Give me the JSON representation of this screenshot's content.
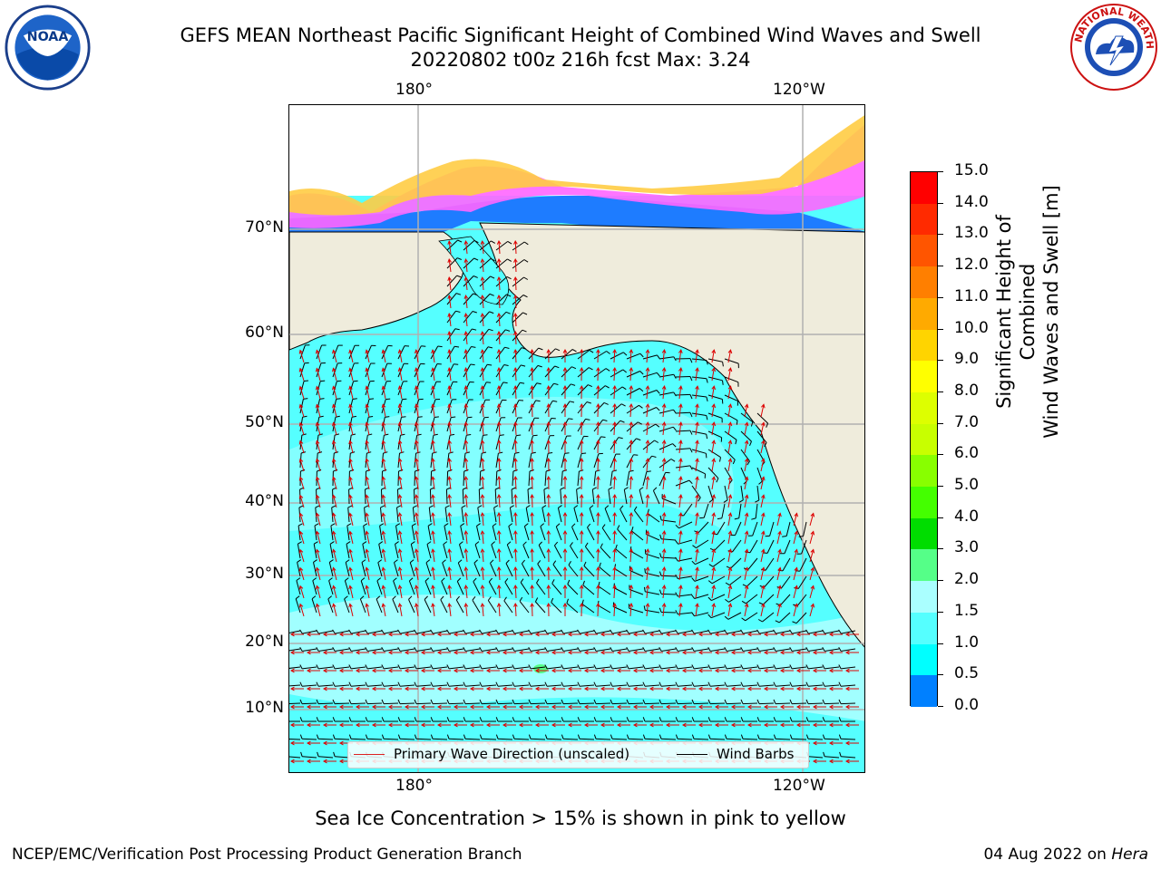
{
  "header": {
    "title_line1": "GEFS MEAN Northeast Pacific Significant Height of Combined Wind Waves and Swell",
    "title_line2": "20220802 t00z 216h fcst   Max: 3.24"
  },
  "logos": {
    "left": {
      "name": "noaa-logo",
      "text": "NOAA"
    },
    "right": {
      "name": "nws-logo",
      "text": "NATIONAL WEATHER SERVICE"
    }
  },
  "map": {
    "lon_labels_top": [
      "180°",
      "120°W"
    ],
    "lon_labels_bottom": [
      "180°",
      "120°W"
    ],
    "lat_labels": [
      "70°N",
      "60°N",
      "50°N",
      "40°N",
      "30°N",
      "20°N",
      "10°N"
    ],
    "colors": {
      "land": "#efecdc",
      "ocean_high": "#aaffff",
      "ocean_mid": "#55ffff",
      "ocean_low": "#00ffff",
      "ice_pink": "#ff66ff",
      "ice_orange": "#ffcc44",
      "wave_arrow": "#dd0000",
      "barb": "#000000",
      "gridline": "#b0b0b0"
    }
  },
  "legend": {
    "wave_label": "Primary Wave Direction (unscaled)",
    "barb_label": "Wind Barbs",
    "wave_color": "#dd2222",
    "barb_color": "#000000"
  },
  "colorbar": {
    "title_line1": "Significant Height of Combined",
    "title_line2": "Wind Waves and Swell [m]",
    "ticks": [
      "15.0",
      "14.0",
      "13.0",
      "12.0",
      "11.0",
      "10.0",
      "9.0",
      "8.0",
      "7.0",
      "6.0",
      "5.0",
      "4.0",
      "3.0",
      "2.0",
      "1.5",
      "1.0",
      "0.5",
      "0.0"
    ],
    "colors": [
      "#ff0000",
      "#ff2a00",
      "#ff5500",
      "#ff7f00",
      "#ffaa00",
      "#ffd400",
      "#ffff00",
      "#ddff00",
      "#c8ff00",
      "#88ff00",
      "#44ff00",
      "#00dd00",
      "#55ff88",
      "#aaffff",
      "#55ffff",
      "#00ffff",
      "#0080ff",
      "#0000ff"
    ]
  },
  "footer": {
    "ice_note": "Sea Ice Concentration > 15% is shown in pink to yellow",
    "credit_left": "NCEP/EMC/Verification Post Processing Product Generation Branch",
    "credit_date": "04 Aug 2022 on ",
    "credit_host": "Hera"
  }
}
